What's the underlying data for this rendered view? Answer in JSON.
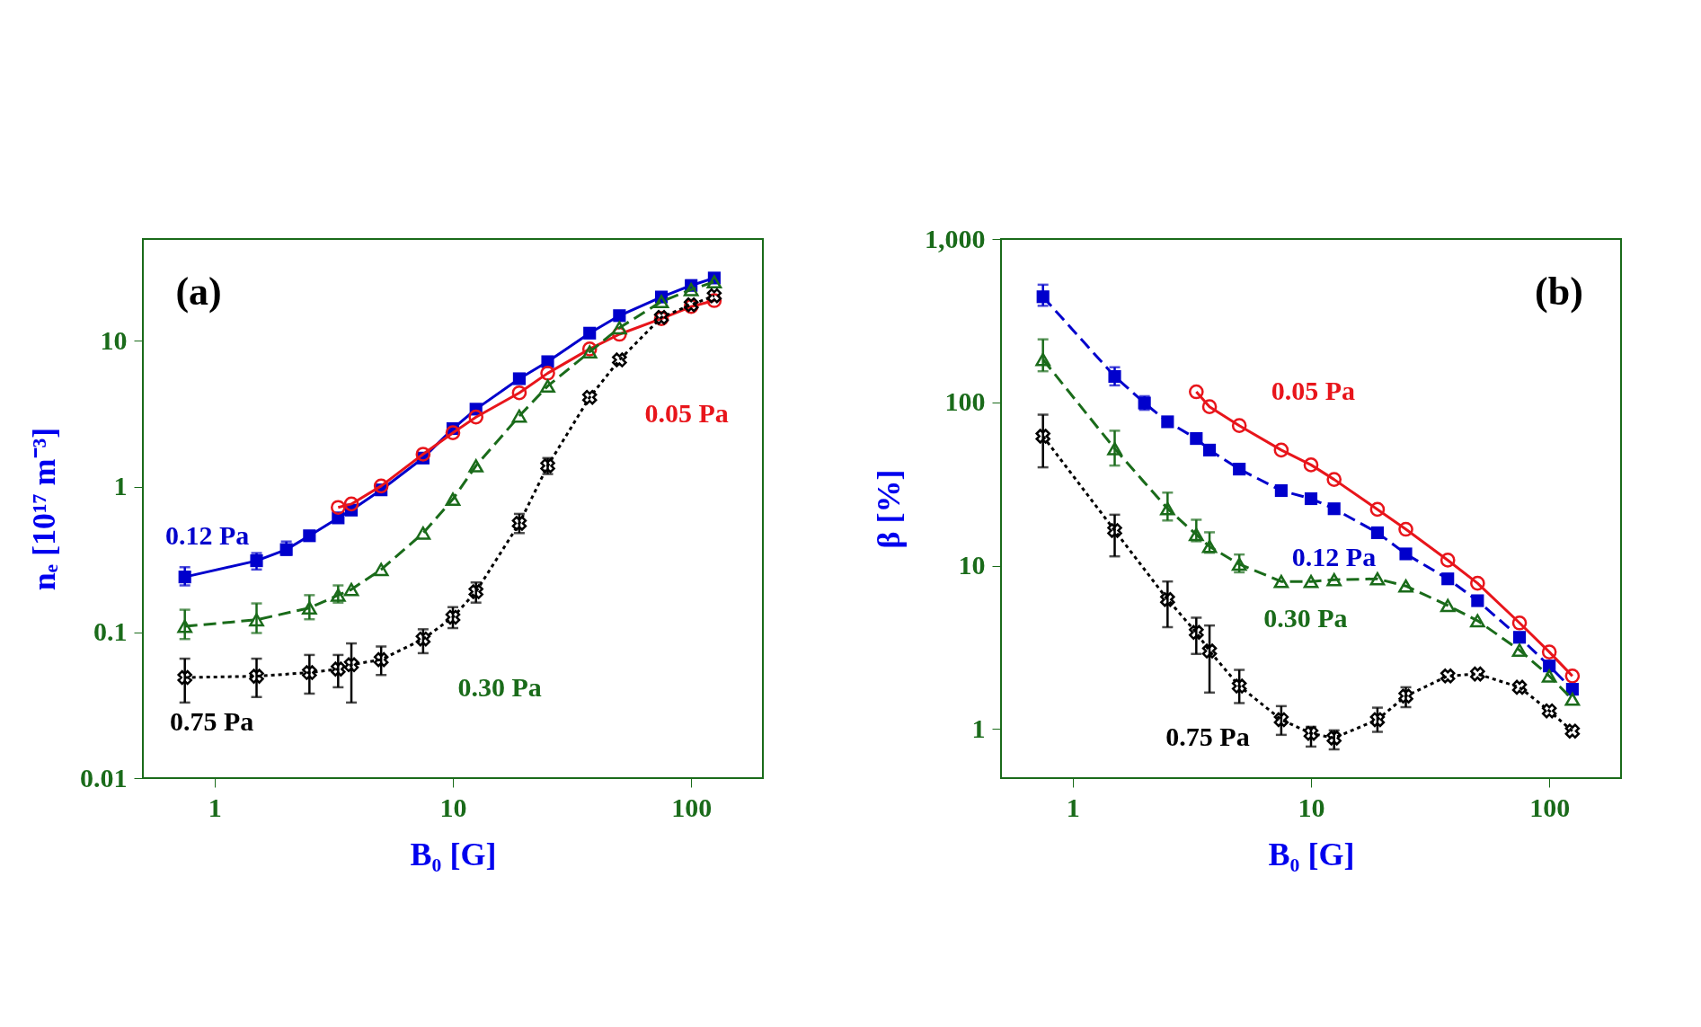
{
  "chart_data": [
    {
      "type": "line",
      "title": "(a)",
      "xlabel": "B₀ [G]",
      "ylabel": "nₑ [10¹⁷ m⁻³]",
      "log": "xy",
      "xlim": [
        0.5,
        200
      ],
      "ylim": [
        0.01,
        50
      ],
      "xticks": [
        1,
        10,
        100
      ],
      "yticks": [
        0.01,
        0.1,
        1,
        10
      ],
      "grid": false,
      "series": [
        {
          "name": "0.12 Pa",
          "color": "#0000cc",
          "marker": "square",
          "line_style": "solid",
          "x": [
            0.75,
            1.5,
            2,
            2.5,
            3.3,
            3.75,
            5,
            7.5,
            10,
            12.5,
            19,
            25,
            37.5,
            50,
            75,
            100,
            125
          ],
          "values": [
            0.24,
            0.31,
            0.37,
            0.46,
            0.61,
            0.69,
            0.95,
            1.57,
            2.5,
            3.4,
            5.5,
            7.2,
            11.3,
            14.9,
            20,
            24,
            27
          ],
          "errors": [
            [
              0.21,
              0.28
            ],
            [
              0.27,
              0.35
            ],
            [
              0.34,
              0.42
            ],
            null,
            null,
            null,
            null,
            null,
            null,
            null,
            null,
            null,
            null,
            null,
            null,
            null,
            null
          ]
        },
        {
          "name": "0.05 Pa",
          "color": "#e8151b",
          "marker": "circle",
          "line_style": "solid",
          "x": [
            3.3,
            3.75,
            5,
            7.5,
            10,
            12.5,
            19,
            25,
            37.5,
            50,
            75,
            100,
            125
          ],
          "values": [
            0.72,
            0.76,
            1.01,
            1.67,
            2.34,
            3.0,
            4.4,
            6.0,
            8.8,
            11.1,
            14.2,
            17.2,
            18.9
          ]
        },
        {
          "name": "0.30 Pa",
          "color": "#1a6b1a",
          "marker": "triangle",
          "line_style": "dashed",
          "x": [
            0.75,
            1.5,
            2.5,
            3.3,
            3.75,
            5,
            7.5,
            10,
            12.5,
            19,
            25,
            37.5,
            50,
            75,
            100,
            125
          ],
          "values": [
            0.11,
            0.122,
            0.147,
            0.18,
            0.197,
            0.27,
            0.48,
            0.82,
            1.39,
            3.05,
            4.9,
            8.4,
            12.3,
            18.6,
            22.5,
            25.4
          ],
          "errors": [
            [
              0.09,
              0.143
            ],
            [
              0.099,
              0.158
            ],
            [
              0.123,
              0.18
            ],
            [
              0.16,
              0.21
            ],
            null,
            null,
            null,
            null,
            null,
            null,
            null,
            null,
            null,
            null,
            null,
            null
          ]
        },
        {
          "name": "0.75 Pa",
          "color": "#000000",
          "marker": "cross",
          "line_style": "dotted",
          "x": [
            0.75,
            1.5,
            2.5,
            3.3,
            3.75,
            5,
            7.5,
            10,
            12.5,
            19,
            25,
            37.5,
            50,
            75,
            100,
            125
          ],
          "values": [
            0.049,
            0.05,
            0.053,
            0.056,
            0.06,
            0.065,
            0.09,
            0.127,
            0.19,
            0.56,
            1.39,
            4.1,
            7.4,
            14.5,
            17.7,
            20.4
          ],
          "errors": [
            [
              0.033,
              0.066
            ],
            [
              0.036,
              0.066
            ],
            [
              0.038,
              0.07
            ],
            [
              0.042,
              0.07
            ],
            [
              0.033,
              0.084
            ],
            [
              0.051,
              0.08
            ],
            [
              0.072,
              0.105
            ],
            [
              0.107,
              0.149
            ],
            [
              0.16,
              0.22
            ],
            [
              0.48,
              0.65
            ],
            [
              1.22,
              1.57
            ],
            null,
            null,
            null,
            null,
            null
          ]
        }
      ]
    },
    {
      "type": "line",
      "title": "(b)",
      "xlabel": "B₀ [G]",
      "ylabel": "β [%]",
      "log": "xy",
      "xlim": [
        0.5,
        200
      ],
      "ylim": [
        0.5,
        1000
      ],
      "xticks": [
        1,
        10,
        100
      ],
      "yticks": [
        1,
        10,
        100,
        {
          "value": 1000,
          "label": "1,000"
        }
      ],
      "grid": false,
      "series": [
        {
          "name": "0.05 Pa",
          "color": "#e8151b",
          "marker": "circle",
          "line_style": "solid",
          "x": [
            3.3,
            3.75,
            5,
            7.5,
            10,
            12.5,
            19,
            25,
            37.5,
            50,
            75,
            100,
            125
          ],
          "values": [
            116,
            94,
            72,
            51,
            41.4,
            33.7,
            22.1,
            16.7,
            10.8,
            7.8,
            4.46,
            2.96,
            2.11
          ]
        },
        {
          "name": "0.12 Pa",
          "color": "#0000cc",
          "marker": "square",
          "line_style": "dashed",
          "x": [
            0.75,
            1.5,
            2,
            2.5,
            3.3,
            3.75,
            5,
            7.5,
            10,
            12.5,
            19,
            25,
            37.5,
            50,
            75,
            100,
            125
          ],
          "values": [
            443,
            144,
            99,
            76,
            60,
            51,
            39,
            28.8,
            25.7,
            22.3,
            15.9,
            11.8,
            8.3,
            6.1,
            3.64,
            2.43,
            1.75
          ],
          "errors": [
            [
              390,
              525
            ],
            [
              127,
              164
            ],
            [
              90,
              109
            ],
            null,
            null,
            null,
            null,
            null,
            null,
            null,
            null,
            null,
            null,
            null,
            null,
            null,
            null
          ]
        },
        {
          "name": "0.30 Pa",
          "color": "#1a6b1a",
          "marker": "triangle",
          "line_style": "dashed",
          "x": [
            0.75,
            1.5,
            2.5,
            3.3,
            3.75,
            5,
            7.5,
            10,
            12.5,
            19,
            25,
            37.5,
            50,
            75,
            100,
            125
          ],
          "values": [
            183,
            52,
            22.3,
            15.5,
            13.1,
            10.2,
            8.0,
            8.0,
            8.2,
            8.3,
            7.5,
            5.7,
            4.6,
            3.04,
            2.11,
            1.52
          ],
          "errors": [
            [
              155,
              243
            ],
            [
              41,
              67
            ],
            [
              18.9,
              28
            ],
            [
              14.1,
              19.1
            ],
            [
              12.0,
              16
            ],
            [
              9.1,
              11.7
            ],
            null,
            null,
            null,
            null,
            null,
            null,
            null,
            null,
            null,
            null
          ]
        },
        {
          "name": "0.75 Pa",
          "color": "#000000",
          "marker": "cross",
          "line_style": "dotted",
          "x": [
            0.75,
            1.5,
            2.5,
            3.3,
            3.75,
            5,
            7.5,
            10,
            12.5,
            19,
            25,
            37.5,
            50,
            75,
            100,
            125
          ],
          "values": [
            62,
            16.4,
            6.2,
            3.9,
            3.0,
            1.83,
            1.14,
            0.94,
            0.88,
            1.14,
            1.59,
            2.11,
            2.17,
            1.8,
            1.29,
            0.97
          ],
          "errors": [
            [
              40,
              84
            ],
            [
              11.4,
              20.5
            ],
            [
              4.2,
              8.0
            ],
            [
              2.88,
              4.8
            ],
            [
              1.67,
              4.3
            ],
            [
              1.44,
              2.3
            ],
            [
              0.92,
              1.38
            ],
            [
              0.78,
              1.03
            ],
            [
              0.75,
              0.98
            ],
            [
              0.96,
              1.35
            ],
            [
              1.36,
              1.8
            ],
            null,
            null,
            null,
            null,
            null
          ]
        }
      ]
    }
  ]
}
